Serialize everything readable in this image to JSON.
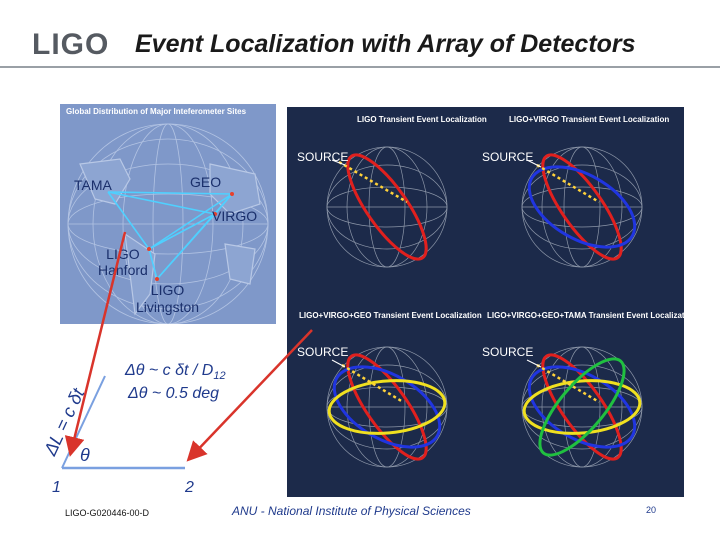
{
  "header": {
    "logo_text": "LIGO",
    "title": "Event Localization with Array of Detectors"
  },
  "globe_map": {
    "caption": "Global Distribution of Major Inteferometer Sites",
    "sites": {
      "tama": "TAMA",
      "geo": "GEO",
      "virgo": "VIRGO",
      "ligo_hanford_1": "LIGO",
      "ligo_hanford_2": "Hanford",
      "ligo_livingston_1": "LIGO",
      "ligo_livingston_2": "Livingston"
    }
  },
  "localization_panels": [
    {
      "caption": "LIGO Transient Event Localization",
      "source_label": "SOURCE"
    },
    {
      "caption": "LIGO+VIRGO Transient Event Localization",
      "source_label": "SOURCE"
    },
    {
      "caption": "LIGO+VIRGO+GEO Transient Event Localization",
      "source_label": "SOURCE"
    },
    {
      "caption": "LIGO+VIRGO+GEO+TAMA Transient Event Localization",
      "source_label": "SOURCE"
    }
  ],
  "diagram": {
    "delta_theta_formula": "Δθ ~ c δt / D",
    "delta_theta_subscript": "12",
    "delta_theta_value": "Δθ ~ 0.5 deg",
    "delta_l_label": "ΔL = c δt",
    "theta_label": "θ",
    "point_1": "1",
    "point_2": "2"
  },
  "footer": {
    "doc_id": "LIGO-G020446-00-D",
    "institute": "ANU - National Institute of Physical Sciences",
    "page_number": "20"
  },
  "colors": {
    "title_blue": "#1f3a8c",
    "panel_dark": "#1c2a4a",
    "map_blue": "#7d97c8",
    "arrow_red": "#d9342b",
    "baseline_blue": "#7aa0e0"
  }
}
